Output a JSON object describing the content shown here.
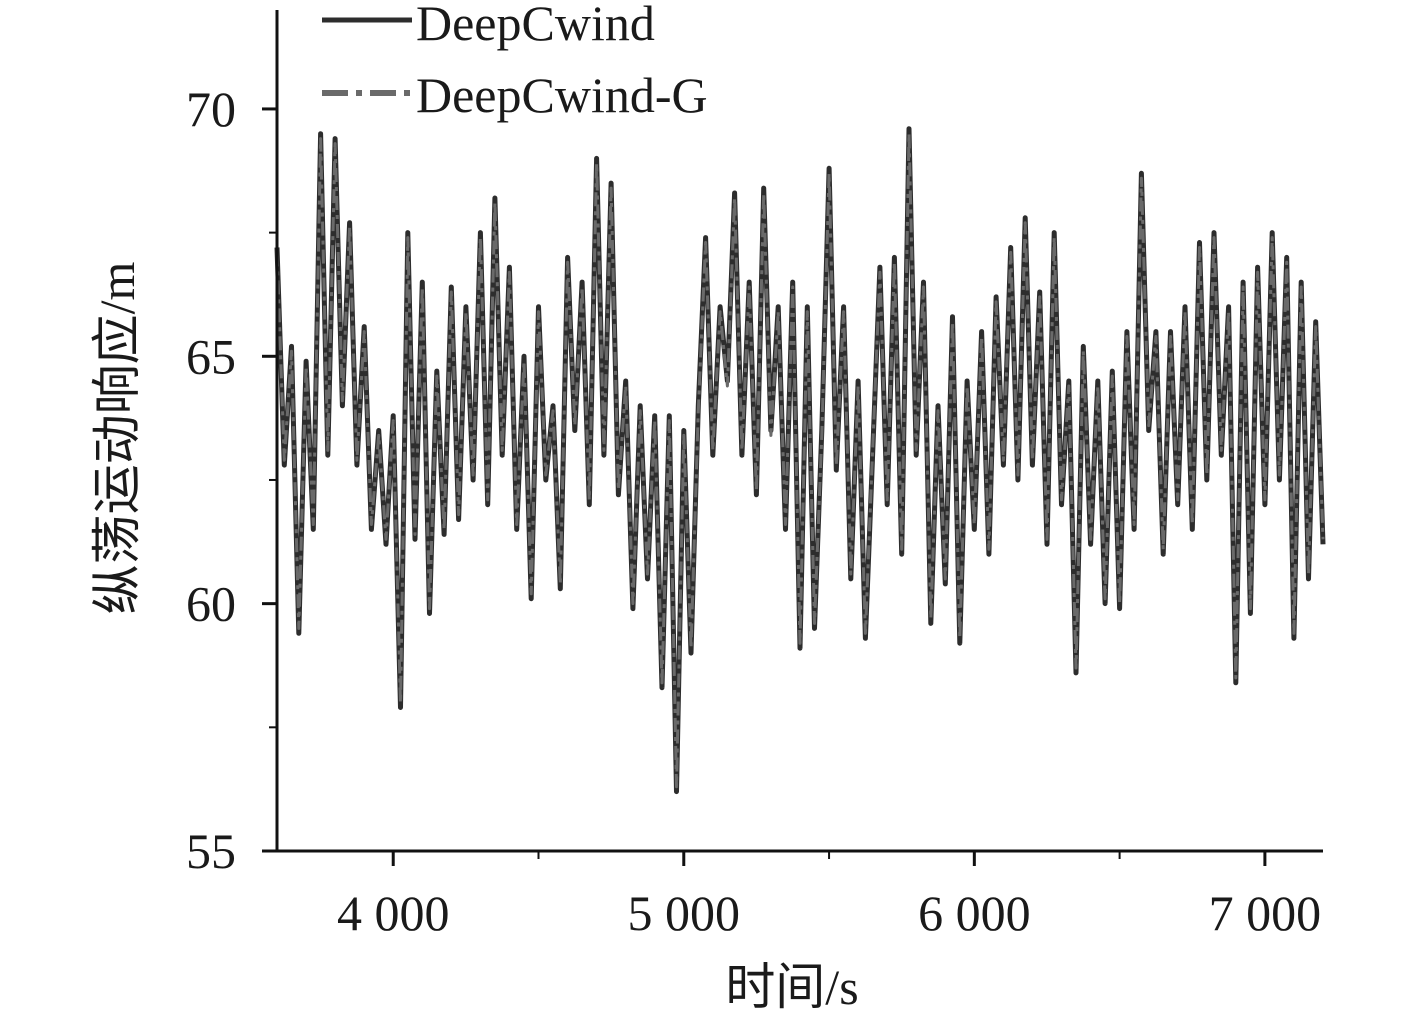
{
  "chart_data": {
    "type": "line",
    "title": "",
    "xlabel": "时间/s",
    "ylabel": "纵荡运动响应/m",
    "xlim": [
      3600,
      7200
    ],
    "ylim": [
      55,
      72
    ],
    "x_ticks": [
      4000,
      5000,
      6000,
      7000
    ],
    "x_tick_labels": [
      "4 000",
      "5 000",
      "6 000",
      "7 000"
    ],
    "x_minor_ticks": [
      4500,
      5500,
      6500
    ],
    "y_ticks": [
      55,
      60,
      65,
      70
    ],
    "y_tick_labels": [
      "55",
      "60",
      "65",
      "70"
    ],
    "y_minor_ticks": [
      57.5,
      62.5,
      67.5
    ],
    "grid": false,
    "legend_position": "top-left",
    "colors": {
      "axis": "#111111",
      "deepcwind": "#2d2d2d",
      "deepcwind_g": "#6a6a6a"
    },
    "series": [
      {
        "name": "DeepCwind",
        "style": "solid",
        "x": [
          3600,
          3625,
          3650,
          3675,
          3700,
          3725,
          3750,
          3775,
          3800,
          3825,
          3850,
          3875,
          3900,
          3925,
          3950,
          3975,
          4000,
          4025,
          4050,
          4075,
          4100,
          4125,
          4150,
          4175,
          4200,
          4225,
          4250,
          4275,
          4300,
          4325,
          4350,
          4375,
          4400,
          4425,
          4450,
          4475,
          4500,
          4525,
          4550,
          4575,
          4600,
          4625,
          4650,
          4675,
          4700,
          4725,
          4750,
          4775,
          4800,
          4825,
          4850,
          4875,
          4900,
          4925,
          4950,
          4975,
          5000,
          5025,
          5050,
          5075,
          5100,
          5125,
          5150,
          5175,
          5200,
          5225,
          5250,
          5275,
          5300,
          5325,
          5350,
          5375,
          5400,
          5425,
          5450,
          5475,
          5500,
          5525,
          5550,
          5575,
          5600,
          5625,
          5650,
          5675,
          5700,
          5725,
          5750,
          5775,
          5800,
          5825,
          5850,
          5875,
          5900,
          5925,
          5950,
          5975,
          6000,
          6025,
          6050,
          6075,
          6100,
          6125,
          6150,
          6175,
          6200,
          6225,
          6250,
          6275,
          6300,
          6325,
          6350,
          6375,
          6400,
          6425,
          6450,
          6475,
          6500,
          6525,
          6550,
          6575,
          6600,
          6625,
          6650,
          6675,
          6700,
          6725,
          6750,
          6775,
          6800,
          6825,
          6850,
          6875,
          6900,
          6925,
          6950,
          6975,
          7000,
          7025,
          7050,
          7075,
          7100,
          7125,
          7150,
          7175,
          7200
        ],
        "values": [
          67.2,
          62.8,
          65.2,
          59.4,
          64.9,
          61.5,
          69.5,
          63.0,
          69.4,
          64.0,
          67.7,
          62.8,
          65.6,
          61.5,
          63.5,
          61.2,
          63.8,
          57.9,
          67.5,
          61.3,
          66.5,
          59.8,
          64.7,
          61.4,
          66.4,
          61.7,
          66.0,
          62.5,
          67.5,
          62.0,
          68.2,
          63.0,
          66.8,
          61.5,
          65.0,
          60.1,
          66.0,
          62.5,
          64.0,
          60.3,
          67.0,
          63.5,
          66.5,
          62.0,
          69.0,
          63.0,
          68.5,
          62.2,
          64.5,
          59.9,
          64.0,
          60.5,
          63.8,
          58.3,
          63.8,
          56.2,
          63.5,
          59.0,
          64.0,
          67.4,
          63.0,
          66.0,
          64.5,
          68.3,
          63.0,
          66.5,
          62.2,
          68.4,
          63.5,
          66.0,
          61.5,
          66.5,
          59.1,
          66.0,
          59.5,
          63.5,
          68.8,
          62.7,
          66.0,
          60.5,
          64.5,
          59.3,
          63.0,
          66.8,
          62.0,
          67.0,
          61.0,
          69.6,
          63.0,
          66.5,
          59.6,
          64.0,
          60.4,
          65.8,
          59.2,
          64.5,
          61.5,
          65.5,
          61.0,
          66.2,
          62.8,
          67.2,
          62.5,
          67.8,
          62.8,
          66.3,
          61.2,
          67.5,
          62.0,
          64.5,
          58.6,
          65.2,
          61.2,
          64.5,
          60.0,
          64.7,
          59.9,
          65.5,
          61.5,
          68.7,
          63.5,
          65.5,
          61.0,
          65.5,
          62.0,
          66.0,
          61.5,
          67.3,
          62.5,
          67.5,
          63.0,
          66.0,
          58.4,
          66.5,
          59.8,
          66.8,
          62.0,
          67.5,
          62.5,
          67.0,
          59.3,
          66.5,
          60.5,
          65.7,
          61.2
        ]
      },
      {
        "name": "DeepCwind-G",
        "style": "dash-dot",
        "x": [
          3600,
          3625,
          3650,
          3675,
          3700,
          3725,
          3750,
          3775,
          3800,
          3825,
          3850,
          3875,
          3900,
          3925,
          3950,
          3975,
          4000,
          4025,
          4050,
          4075,
          4100,
          4125,
          4150,
          4175,
          4200,
          4225,
          4250,
          4275,
          4300,
          4325,
          4350,
          4375,
          4400,
          4425,
          4450,
          4475,
          4500,
          4525,
          4550,
          4575,
          4600,
          4625,
          4650,
          4675,
          4700,
          4725,
          4750,
          4775,
          4800,
          4825,
          4850,
          4875,
          4900,
          4925,
          4950,
          4975,
          5000,
          5025,
          5050,
          5075,
          5100,
          5125,
          5150,
          5175,
          5200,
          5225,
          5250,
          5275,
          5300,
          5325,
          5350,
          5375,
          5400,
          5425,
          5450,
          5475,
          5500,
          5525,
          5550,
          5575,
          5600,
          5625,
          5650,
          5675,
          5700,
          5725,
          5750,
          5775,
          5800,
          5825,
          5850,
          5875,
          5900,
          5925,
          5950,
          5975,
          6000,
          6025,
          6050,
          6075,
          6100,
          6125,
          6150,
          6175,
          6200,
          6225,
          6250,
          6275,
          6300,
          6325,
          6350,
          6375,
          6400,
          6425,
          6450,
          6475,
          6500,
          6525,
          6550,
          6575,
          6600,
          6625,
          6650,
          6675,
          6700,
          6725,
          6750,
          6775,
          6800,
          6825,
          6850,
          6875,
          6900,
          6925,
          6950,
          6975,
          7000,
          7025,
          7050,
          7075,
          7100,
          7125,
          7150,
          7175,
          7200
        ],
        "values": [
          67.1,
          62.9,
          65.1,
          59.5,
          64.8,
          61.6,
          69.4,
          63.1,
          69.3,
          64.1,
          67.6,
          62.9,
          65.5,
          61.6,
          63.4,
          61.3,
          63.7,
          58.0,
          67.4,
          61.4,
          66.4,
          59.9,
          64.6,
          61.5,
          66.3,
          61.8,
          65.9,
          62.6,
          67.4,
          62.1,
          68.1,
          63.1,
          66.7,
          61.6,
          64.9,
          60.2,
          65.9,
          62.6,
          63.9,
          60.4,
          66.9,
          63.6,
          66.4,
          62.1,
          68.9,
          63.1,
          68.4,
          62.3,
          64.4,
          60.0,
          63.9,
          60.6,
          63.7,
          58.4,
          63.7,
          56.3,
          63.4,
          59.1,
          63.9,
          67.3,
          63.1,
          65.9,
          64.4,
          68.2,
          63.1,
          66.4,
          62.3,
          68.3,
          63.4,
          65.9,
          61.6,
          66.4,
          59.2,
          65.9,
          59.6,
          63.4,
          68.7,
          62.8,
          65.9,
          60.6,
          64.4,
          59.4,
          63.1,
          66.7,
          62.1,
          66.9,
          61.1,
          69.5,
          63.1,
          66.4,
          59.7,
          63.9,
          60.5,
          65.7,
          59.3,
          64.4,
          61.6,
          65.4,
          61.1,
          66.1,
          62.9,
          67.1,
          62.6,
          67.7,
          62.9,
          66.2,
          61.3,
          67.4,
          62.1,
          64.4,
          58.7,
          65.1,
          61.3,
          64.4,
          60.1,
          64.6,
          60.0,
          65.4,
          61.6,
          68.6,
          63.6,
          65.4,
          61.1,
          65.4,
          62.1,
          65.9,
          61.6,
          67.2,
          62.6,
          67.4,
          63.1,
          65.9,
          58.5,
          66.4,
          59.9,
          66.7,
          62.1,
          67.4,
          62.6,
          66.9,
          59.4,
          66.4,
          60.6,
          65.6,
          61.3
        ]
      }
    ]
  }
}
